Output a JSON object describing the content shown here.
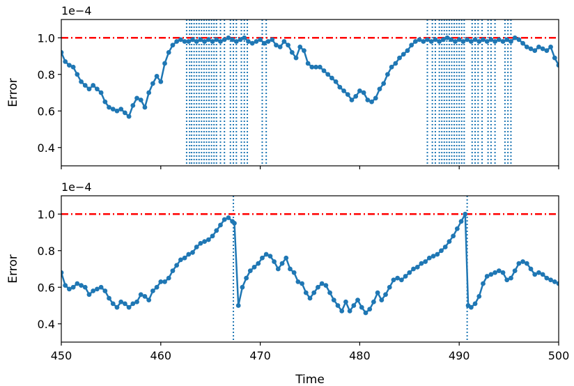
{
  "chart_data": [
    {
      "type": "line",
      "panel": "top",
      "title": "",
      "xlabel": "",
      "ylabel": "Error",
      "offset_text": "1e−4",
      "xlim": [
        450,
        500
      ],
      "ylim": [
        0.3,
        1.1
      ],
      "yticks": [
        "0.4",
        "0.6",
        "0.8",
        "1.0"
      ],
      "threshold": 1.0,
      "colors": {
        "series": "#1f77b4",
        "threshold": "#ff0000"
      },
      "x": [
        450.0,
        450.4,
        450.8,
        451.2,
        451.6,
        452.0,
        452.4,
        452.8,
        453.2,
        453.6,
        454.0,
        454.4,
        454.8,
        455.2,
        455.6,
        456.0,
        456.4,
        456.8,
        457.2,
        457.6,
        458.0,
        458.4,
        458.8,
        459.2,
        459.6,
        460.0,
        460.4,
        460.8,
        461.2,
        461.6,
        462.0,
        462.4,
        462.8,
        463.2,
        463.6,
        464.0,
        464.4,
        464.8,
        465.2,
        465.6,
        466.0,
        466.4,
        466.8,
        467.2,
        467.6,
        468.0,
        468.4,
        468.8,
        469.2,
        469.6,
        470.0,
        470.4,
        470.8,
        471.2,
        471.6,
        472.0,
        472.4,
        472.8,
        473.2,
        473.6,
        474.0,
        474.4,
        474.8,
        475.2,
        475.6,
        476.0,
        476.4,
        476.8,
        477.2,
        477.6,
        478.0,
        478.4,
        478.8,
        479.2,
        479.6,
        480.0,
        480.4,
        480.8,
        481.2,
        481.6,
        482.0,
        482.4,
        482.8,
        483.2,
        483.6,
        484.0,
        484.4,
        484.8,
        485.2,
        485.6,
        486.0,
        486.4,
        486.8,
        487.2,
        487.6,
        488.0,
        488.4,
        488.8,
        489.2,
        489.6,
        490.0,
        490.4,
        490.8,
        491.2,
        491.6,
        492.0,
        492.4,
        492.8,
        493.2,
        493.6,
        494.0,
        494.4,
        494.8,
        495.2,
        495.6,
        496.0,
        496.4,
        496.8,
        497.2,
        497.6,
        498.0,
        498.4,
        498.8,
        499.2,
        499.6,
        500.0
      ],
      "y": [
        0.92,
        0.87,
        0.85,
        0.84,
        0.8,
        0.76,
        0.74,
        0.72,
        0.74,
        0.72,
        0.7,
        0.65,
        0.62,
        0.61,
        0.6,
        0.61,
        0.59,
        0.57,
        0.63,
        0.67,
        0.66,
        0.62,
        0.7,
        0.75,
        0.79,
        0.76,
        0.86,
        0.92,
        0.96,
        0.98,
        0.99,
        0.98,
        0.98,
        0.99,
        0.98,
        0.99,
        0.98,
        0.99,
        0.98,
        0.99,
        0.98,
        0.99,
        1.0,
        0.99,
        0.98,
        0.99,
        1.0,
        0.98,
        0.97,
        0.98,
        0.99,
        0.97,
        0.98,
        0.99,
        0.96,
        0.95,
        0.98,
        0.96,
        0.92,
        0.89,
        0.95,
        0.93,
        0.86,
        0.84,
        0.84,
        0.84,
        0.82,
        0.8,
        0.78,
        0.76,
        0.73,
        0.71,
        0.69,
        0.66,
        0.68,
        0.71,
        0.7,
        0.66,
        0.65,
        0.67,
        0.72,
        0.75,
        0.8,
        0.84,
        0.86,
        0.89,
        0.91,
        0.93,
        0.96,
        0.98,
        0.99,
        0.98,
        0.99,
        0.98,
        0.99,
        0.98,
        0.99,
        1.0,
        0.99,
        0.98,
        0.99,
        0.98,
        0.99,
        0.98,
        0.99,
        0.98,
        0.99,
        0.98,
        0.99,
        0.98,
        0.99,
        0.98,
        0.99,
        0.98,
        1.0,
        0.99,
        0.97,
        0.95,
        0.94,
        0.93,
        0.95,
        0.94,
        0.93,
        0.95,
        0.89,
        0.85
      ],
      "event_lines": [
        462.6,
        462.9,
        463.1,
        463.35,
        463.6,
        463.85,
        464.1,
        464.35,
        464.6,
        464.85,
        465.1,
        465.35,
        465.6,
        466.0,
        466.4,
        467.0,
        467.3,
        467.6,
        468.1,
        468.4,
        468.7,
        470.2,
        470.6,
        486.8,
        487.3,
        487.6,
        488.0,
        488.25,
        488.5,
        488.75,
        489.0,
        489.25,
        489.5,
        489.75,
        490.0,
        490.25,
        490.5,
        491.3,
        491.6,
        491.9,
        492.3,
        492.9,
        493.2,
        493.6,
        494.6,
        494.9,
        495.2
      ]
    },
    {
      "type": "line",
      "panel": "bottom",
      "title": "",
      "xlabel": "Time",
      "ylabel": "Error",
      "offset_text": "1e−4",
      "xlim": [
        450,
        500
      ],
      "ylim": [
        0.3,
        1.1
      ],
      "xticks": [
        "450",
        "460",
        "470",
        "480",
        "490",
        "500"
      ],
      "yticks": [
        "0.4",
        "0.6",
        "0.8",
        "1.0"
      ],
      "threshold": 1.0,
      "colors": {
        "series": "#1f77b4",
        "threshold": "#ff0000"
      },
      "x": [
        450.0,
        450.4,
        450.8,
        451.2,
        451.6,
        452.0,
        452.4,
        452.8,
        453.2,
        453.6,
        454.0,
        454.4,
        454.8,
        455.2,
        455.6,
        456.0,
        456.4,
        456.8,
        457.2,
        457.6,
        458.0,
        458.4,
        458.8,
        459.2,
        459.6,
        460.0,
        460.4,
        460.8,
        461.2,
        461.6,
        462.0,
        462.4,
        462.8,
        463.2,
        463.6,
        464.0,
        464.4,
        464.8,
        465.2,
        465.6,
        466.0,
        466.4,
        466.8,
        467.2,
        467.4,
        467.8,
        468.2,
        468.6,
        469.0,
        469.4,
        469.8,
        470.2,
        470.6,
        471.0,
        471.4,
        471.8,
        472.2,
        472.6,
        473.0,
        473.4,
        473.8,
        474.2,
        474.6,
        475.0,
        475.4,
        475.8,
        476.2,
        476.6,
        477.0,
        477.4,
        477.8,
        478.2,
        478.6,
        479.0,
        479.4,
        479.8,
        480.2,
        480.6,
        481.0,
        481.4,
        481.8,
        482.2,
        482.6,
        483.0,
        483.4,
        483.8,
        484.2,
        484.6,
        485.0,
        485.4,
        485.8,
        486.2,
        486.6,
        487.0,
        487.4,
        487.8,
        488.2,
        488.6,
        489.0,
        489.4,
        489.8,
        490.2,
        490.6,
        490.9,
        491.2,
        491.6,
        492.0,
        492.4,
        492.8,
        493.2,
        493.6,
        494.0,
        494.4,
        494.8,
        495.2,
        495.6,
        496.0,
        496.4,
        496.8,
        497.2,
        497.6,
        498.0,
        498.4,
        498.8,
        499.2,
        499.6,
        500.0
      ],
      "y": [
        0.68,
        0.61,
        0.59,
        0.6,
        0.62,
        0.61,
        0.6,
        0.56,
        0.58,
        0.59,
        0.6,
        0.58,
        0.54,
        0.51,
        0.49,
        0.52,
        0.51,
        0.49,
        0.51,
        0.52,
        0.56,
        0.55,
        0.53,
        0.58,
        0.6,
        0.63,
        0.63,
        0.65,
        0.69,
        0.72,
        0.75,
        0.76,
        0.78,
        0.79,
        0.82,
        0.84,
        0.85,
        0.86,
        0.88,
        0.91,
        0.94,
        0.97,
        0.98,
        0.96,
        0.95,
        0.5,
        0.6,
        0.65,
        0.69,
        0.71,
        0.73,
        0.76,
        0.78,
        0.77,
        0.74,
        0.7,
        0.73,
        0.76,
        0.7,
        0.68,
        0.63,
        0.62,
        0.57,
        0.54,
        0.57,
        0.6,
        0.62,
        0.61,
        0.57,
        0.53,
        0.5,
        0.47,
        0.52,
        0.47,
        0.5,
        0.53,
        0.49,
        0.46,
        0.48,
        0.52,
        0.57,
        0.53,
        0.56,
        0.6,
        0.64,
        0.65,
        0.64,
        0.66,
        0.68,
        0.7,
        0.71,
        0.73,
        0.74,
        0.76,
        0.77,
        0.78,
        0.8,
        0.82,
        0.85,
        0.88,
        0.92,
        0.96,
        1.0,
        0.5,
        0.49,
        0.51,
        0.55,
        0.62,
        0.66,
        0.67,
        0.68,
        0.69,
        0.68,
        0.64,
        0.65,
        0.69,
        0.73,
        0.74,
        0.73,
        0.7,
        0.67,
        0.68,
        0.67,
        0.65,
        0.64,
        0.63,
        0.62
      ],
      "event_lines": [
        467.3,
        490.8
      ]
    }
  ]
}
